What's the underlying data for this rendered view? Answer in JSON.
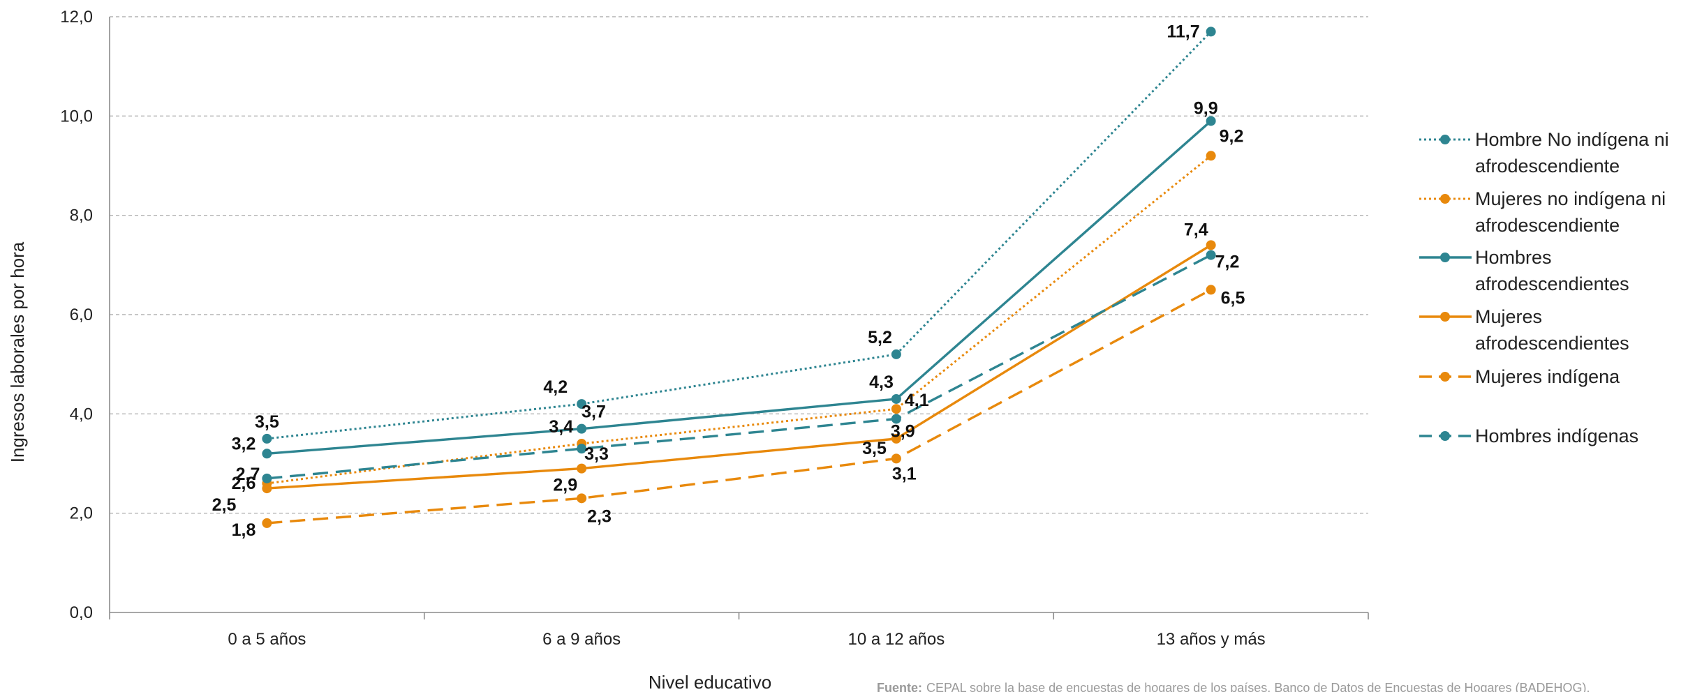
{
  "chart_data": {
    "type": "line",
    "title": "",
    "xlabel": "Nivel educativo",
    "ylabel": "Ingresos laborales por hora",
    "ylim": [
      0,
      12
    ],
    "yticks": [
      "0,0",
      "2,0",
      "4,0",
      "6,0",
      "8,0",
      "10,0",
      "12,0"
    ],
    "categories": [
      "0 a 5 años",
      "6 a 9 años",
      "10 a 12 años",
      "13 años y más"
    ],
    "grid": true,
    "legend_position": "right",
    "series": [
      {
        "name": "Hombre No indígena ni afrodescendiente",
        "legend_lines": [
          "Hombre No indígena ni",
          "afrodescendiente"
        ],
        "values": [
          3.5,
          4.2,
          5.2,
          11.7
        ],
        "labels": [
          "3,5",
          "4,2",
          "5,2",
          "11,7"
        ],
        "color": "#2e8591",
        "dash": "dotted"
      },
      {
        "name": "Mujeres no indígena ni afrodescendiente",
        "legend_lines": [
          "Mujeres no indígena ni",
          "afrodescendiente"
        ],
        "values": [
          2.6,
          3.4,
          4.1,
          9.2
        ],
        "labels": [
          "2,6",
          "3,4",
          "4,1",
          "9,2"
        ],
        "color": "#e8890c",
        "dash": "dotted"
      },
      {
        "name": "Hombres afrodescendientes",
        "legend_lines": [
          "Hombres",
          "afrodescendientes"
        ],
        "values": [
          3.2,
          3.7,
          4.3,
          9.9
        ],
        "labels": [
          "3,2",
          "3,7",
          "4,3",
          "9,9"
        ],
        "color": "#2e8591",
        "dash": "solid"
      },
      {
        "name": "Mujeres afrodescendientes",
        "legend_lines": [
          "Mujeres",
          "afrodescendientes"
        ],
        "values": [
          2.5,
          2.9,
          3.5,
          7.4
        ],
        "labels": [
          "2,5",
          "2,9",
          "3,5",
          "7,4"
        ],
        "color": "#e8890c",
        "dash": "solid"
      },
      {
        "name": "Mujeres indígena",
        "legend_lines": [
          "Mujeres indígena"
        ],
        "values": [
          1.8,
          2.3,
          3.1,
          6.5
        ],
        "labels": [
          "1,8",
          "2,3",
          "3,1",
          "6,5"
        ],
        "color": "#e8890c",
        "dash": "dashed"
      },
      {
        "name": "Hombres indígenas",
        "legend_lines": [
          "Hombres indígenas"
        ],
        "values": [
          2.7,
          3.3,
          3.9,
          7.2
        ],
        "labels": [
          "2,7",
          "3,3",
          "3,9",
          "7,2"
        ],
        "color": "#2e8591",
        "dash": "dashed"
      }
    ],
    "source": {
      "label": "Fuente:",
      "text": "CEPAL sobre la base de  encuestas de hogares de los países, Banco de Datos de Encuestas de Hogares (BADEHOG)."
    }
  }
}
